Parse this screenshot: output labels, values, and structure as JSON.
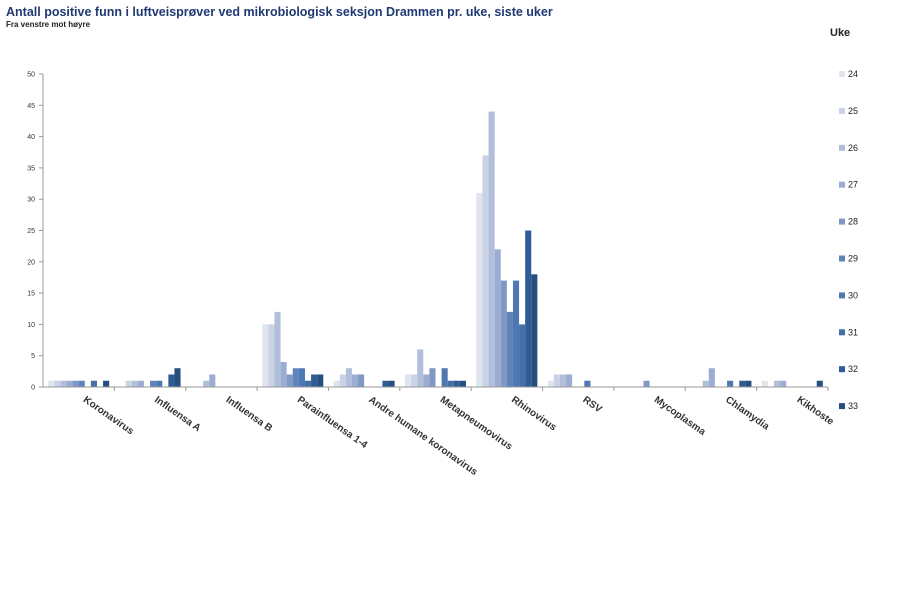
{
  "chart_data": {
    "type": "bar",
    "title": "Antall positive funn i luftveisprøver ved mikrobiologisk seksjon Drammen pr. uke, siste uker",
    "subtitle": "Fra venstre mot høyre",
    "legend_title": "Uke",
    "legend_position": "right",
    "ylim": [
      0,
      50
    ],
    "yticks": [
      "0",
      "5",
      "10",
      "15",
      "20",
      "25",
      "30",
      "35",
      "40",
      "45",
      "50"
    ],
    "grid": false,
    "categories": [
      "Koronavirus",
      "Influensa A",
      "Influensa B",
      "Parainfluensa 1-4",
      "Andre humane koronavirus",
      "Metapneumovirus",
      "Rhinovirus",
      "RSV",
      "Mycoplasma",
      "Chlamydia",
      "Kikhoste"
    ],
    "series": [
      {
        "name": "24",
        "color": "#dfe4ee",
        "values": [
          1,
          0,
          0,
          10,
          1,
          2,
          31,
          1,
          0,
          0,
          1
        ]
      },
      {
        "name": "25",
        "color": "#c9d2e6",
        "values": [
          1,
          1,
          0,
          10,
          2,
          2,
          37,
          2,
          0,
          0,
          0
        ]
      },
      {
        "name": "26",
        "color": "#b2bfdb",
        "values": [
          1,
          1,
          1,
          12,
          3,
          6,
          44,
          2,
          0,
          1,
          1
        ]
      },
      {
        "name": "27",
        "color": "#9cadd2",
        "values": [
          1,
          1,
          2,
          4,
          2,
          2,
          22,
          2,
          0,
          3,
          1
        ]
      },
      {
        "name": "28",
        "color": "#7f98c4",
        "values": [
          1,
          0,
          0,
          2,
          2,
          3,
          17,
          0,
          1,
          0,
          0
        ]
      },
      {
        "name": "29",
        "color": "#5f84bc",
        "values": [
          1,
          1,
          0,
          3,
          0,
          0,
          12,
          0,
          0,
          0,
          0
        ]
      },
      {
        "name": "30",
        "color": "#4f77b1",
        "values": [
          0,
          1,
          0,
          3,
          0,
          3,
          17,
          1,
          0,
          1,
          0
        ]
      },
      {
        "name": "31",
        "color": "#4470a8",
        "values": [
          1,
          0,
          0,
          1,
          0,
          1,
          10,
          0,
          0,
          0,
          0
        ]
      },
      {
        "name": "32",
        "color": "#2f5c94",
        "values": [
          0,
          2,
          0,
          2,
          1,
          1,
          25,
          0,
          0,
          1,
          0
        ]
      },
      {
        "name": "33",
        "color": "#264f80",
        "values": [
          1,
          3,
          0,
          2,
          1,
          1,
          18,
          0,
          0,
          1,
          1
        ]
      }
    ]
  }
}
